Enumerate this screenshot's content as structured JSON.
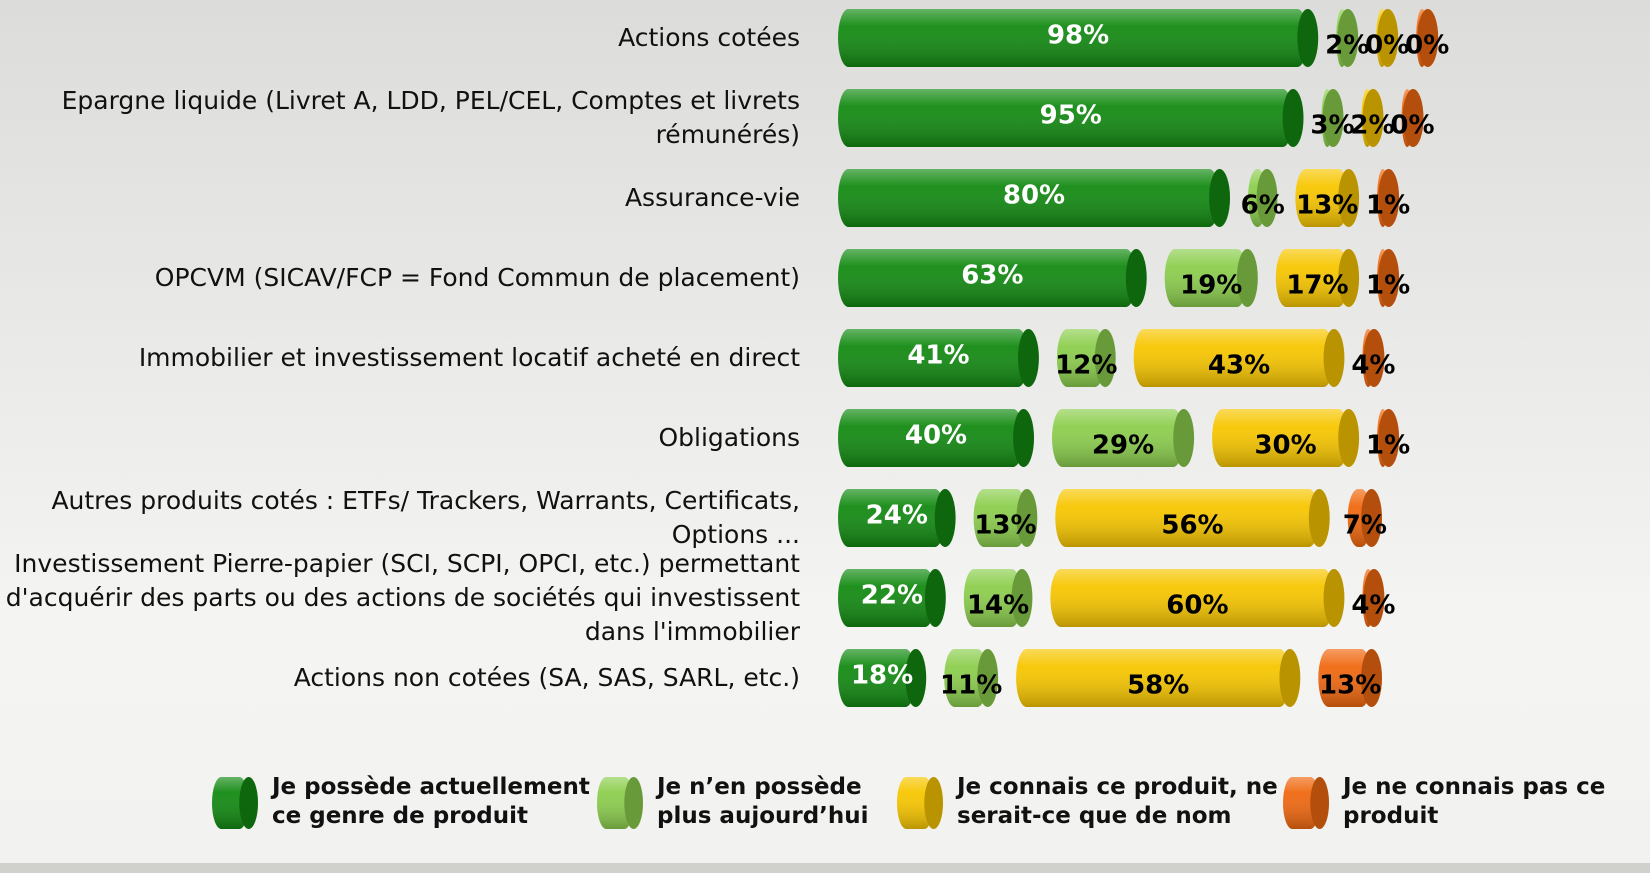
{
  "chart_data": {
    "type": "stacked-cylinder-bar",
    "categories": [
      "Actions cotées",
      "Epargne liquide (Livret A, LDD, PEL/CEL, Comptes et livrets rémunérés)",
      "Assurance-vie",
      "OPCVM (SICAV/FCP = Fond Commun de placement)",
      "Immobilier et investissement locatif acheté en direct",
      "Obligations",
      "Autres produits cotés : ETFs/ Trackers, Warrants, Certificats, Options ...",
      "Investissement Pierre-papier (SCI, SCPI, OPCI, etc.) permettant d'acquérir des parts ou des actions de sociétés qui investissent dans l'immobilier",
      "Actions non cotées (SA, SAS, SARL, etc.)"
    ],
    "series": [
      {
        "name": "Je possède actuellement ce genre de produit",
        "color": "#138a12",
        "label_color": "#ffffff",
        "values": [
          98,
          95,
          80,
          63,
          41,
          40,
          24,
          22,
          18
        ],
        "value_labels": [
          "98%",
          "95%",
          "80%",
          "63%",
          "41%",
          "40%",
          "24%",
          "22%",
          "18%"
        ]
      },
      {
        "name": "Je n’en possède plus aujourd’hui",
        "color": "#8cce4e",
        "label_color": "#000000",
        "values": [
          2,
          3,
          6,
          19,
          12,
          29,
          13,
          14,
          11
        ],
        "value_labels": [
          "2%",
          "3%",
          "6%",
          "19%",
          "12%",
          "29%",
          "13%",
          "14%",
          "11%"
        ]
      },
      {
        "name": "Je connais ce produit, ne serait-ce que de nom",
        "color": "#f7c600",
        "label_color": "#000000",
        "values": [
          0,
          2,
          13,
          17,
          43,
          30,
          56,
          60,
          58
        ],
        "value_labels": [
          "0%",
          "2%",
          "13%",
          "17%",
          "43%",
          "30%",
          "56%",
          "60%",
          "58%"
        ]
      },
      {
        "name": "Je ne connais pas ce produit",
        "color": "#f06810",
        "label_color": "#000000",
        "values": [
          0,
          0,
          1,
          1,
          4,
          1,
          7,
          4,
          13
        ],
        "value_labels": [
          "0%",
          "0%",
          "1%",
          "1%",
          "4%",
          "1%",
          "7%",
          "4%",
          "13%"
        ]
      }
    ],
    "legend": "bottom"
  }
}
